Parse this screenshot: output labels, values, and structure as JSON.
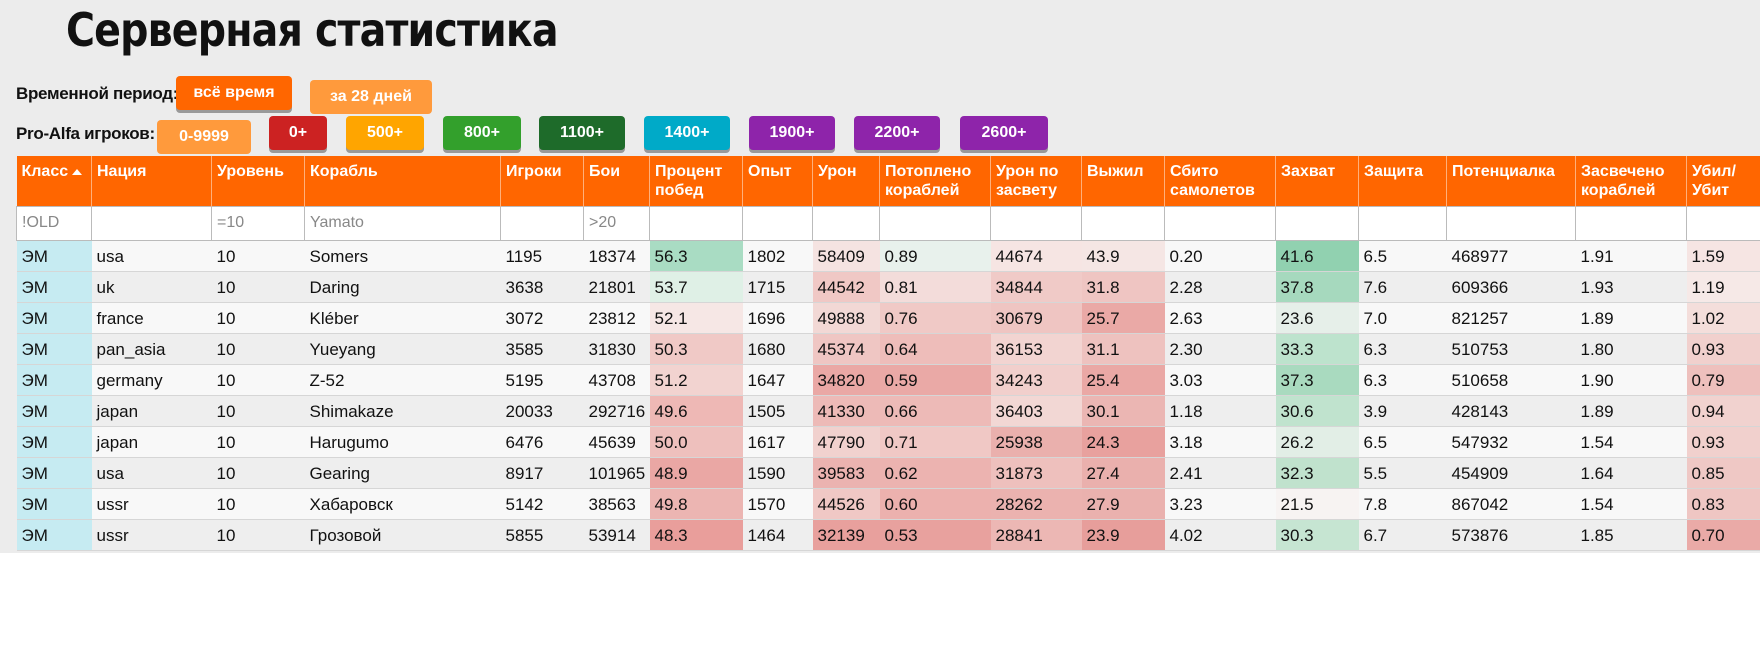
{
  "title": "Серверная статистика",
  "period": {
    "label": "Временной период:",
    "buttons": [
      {
        "label": "всё время",
        "color": "#ff6600",
        "active": true
      },
      {
        "label": "за 28 дней",
        "color": "#ff9a3c",
        "active": false
      }
    ]
  },
  "pro_alfa": {
    "label": "Pro-Alfa игроков:",
    "buttons": [
      {
        "label": "0-9999",
        "color": "#ff9a3c",
        "active": true
      },
      {
        "label": "0+",
        "color": "#cc2222"
      },
      {
        "label": "500+",
        "color": "#ffa500"
      },
      {
        "label": "800+",
        "color": "#33a02c"
      },
      {
        "label": "1100+",
        "color": "#1e6b2a"
      },
      {
        "label": "1400+",
        "color": "#00aac8"
      },
      {
        "label": "1900+",
        "color": "#8e24aa"
      },
      {
        "label": "2200+",
        "color": "#8e24aa"
      },
      {
        "label": "2600+",
        "color": "#8e24aa"
      }
    ]
  },
  "columns": [
    "Класс",
    "Нация",
    "Уровень",
    "Корабль",
    "Игроки",
    "Бои",
    "Процент побед",
    "Опыт",
    "Урон",
    "Потоплено кораблей",
    "Урон по засвету",
    "Выжил",
    "Сбито самолетов",
    "Захват",
    "Защита",
    "Потенциалка",
    "Засвечено кораблей",
    "Убил/ Убит"
  ],
  "sort_column": "Класс",
  "filters": [
    "!OLD",
    "",
    "=10",
    "Yamato",
    "",
    ">20",
    "",
    "",
    "",
    "",
    "",
    "",
    "",
    "",
    "",
    "",
    "",
    ""
  ],
  "rows": [
    [
      "ЭМ",
      "usa",
      "10",
      "Somers",
      "1195",
      "18374",
      "56.3",
      "1802",
      "58409",
      "0.89",
      "44674",
      "43.9",
      "0.20",
      "41.6",
      "6.5",
      "468977",
      "1.91",
      "1.59"
    ],
    [
      "ЭМ",
      "uk",
      "10",
      "Daring",
      "3638",
      "21801",
      "53.7",
      "1715",
      "44542",
      "0.81",
      "34844",
      "31.8",
      "2.28",
      "37.8",
      "7.6",
      "609366",
      "1.93",
      "1.19"
    ],
    [
      "ЭМ",
      "france",
      "10",
      "Kléber",
      "3072",
      "23812",
      "52.1",
      "1696",
      "49888",
      "0.76",
      "30679",
      "25.7",
      "2.63",
      "23.6",
      "7.0",
      "821257",
      "1.89",
      "1.02"
    ],
    [
      "ЭМ",
      "pan_asia",
      "10",
      "Yueyang",
      "3585",
      "31830",
      "50.3",
      "1680",
      "45374",
      "0.64",
      "36153",
      "31.1",
      "2.30",
      "33.3",
      "6.3",
      "510753",
      "1.80",
      "0.93"
    ],
    [
      "ЭМ",
      "germany",
      "10",
      "Z-52",
      "5195",
      "43708",
      "51.2",
      "1647",
      "34820",
      "0.59",
      "34243",
      "25.4",
      "3.03",
      "37.3",
      "6.3",
      "510658",
      "1.90",
      "0.79"
    ],
    [
      "ЭМ",
      "japan",
      "10",
      "Shimakaze",
      "20033",
      "292716",
      "49.6",
      "1505",
      "41330",
      "0.66",
      "36403",
      "30.1",
      "1.18",
      "30.6",
      "3.9",
      "428143",
      "1.89",
      "0.94"
    ],
    [
      "ЭМ",
      "japan",
      "10",
      "Harugumo",
      "6476",
      "45639",
      "50.0",
      "1617",
      "47790",
      "0.71",
      "25938",
      "24.3",
      "3.18",
      "26.2",
      "6.5",
      "547932",
      "1.54",
      "0.93"
    ],
    [
      "ЭМ",
      "usa",
      "10",
      "Gearing",
      "8917",
      "101965",
      "48.9",
      "1590",
      "39583",
      "0.62",
      "31873",
      "27.4",
      "2.41",
      "32.3",
      "5.5",
      "454909",
      "1.64",
      "0.85"
    ],
    [
      "ЭМ",
      "ussr",
      "10",
      "Хабаровск",
      "5142",
      "38563",
      "49.8",
      "1570",
      "44526",
      "0.60",
      "28262",
      "27.9",
      "3.23",
      "21.5",
      "7.8",
      "867042",
      "1.54",
      "0.83"
    ],
    [
      "ЭМ",
      "ussr",
      "10",
      "Грозовой",
      "5855",
      "53914",
      "48.3",
      "1464",
      "32139",
      "0.53",
      "28841",
      "23.9",
      "4.02",
      "30.3",
      "6.7",
      "573876",
      "1.85",
      "0.70"
    ]
  ],
  "cell_colors": {
    "6": [
      "#a9dcc3",
      "#dff0e6",
      "#f6e7e5",
      "#f0c9c6",
      "#f2d3d0",
      "#eeb8b5",
      "#eec0bd",
      "#eaa7a4",
      "#ecb5b2",
      "#e99e9b"
    ],
    "8": [
      "#f5e3e1",
      "#f0c8c5",
      "#f2d8d5",
      "#efc6c3",
      "#eaa8a5",
      "#edbab7",
      "#f1d1ce",
      "#ebb3b0",
      "#f0c8c5",
      "#e8a09d"
    ],
    "9": [
      "#e8f1ec",
      "#f3dcda",
      "#f0c9c6",
      "#eebdba",
      "#eaa9a6",
      "#edbab7",
      "#f0c8c5",
      "#ecb3b0",
      "#ecb1ae",
      "#e8a19e"
    ],
    "10": [
      "#f6e5e3",
      "#f0cac7",
      "#efc5c2",
      "#f2d4d1",
      "#f1cfcc",
      "#f2d7d4",
      "#eab0ad",
      "#eec0bd",
      "#ebb2af",
      "#ecb7b4"
    ],
    "11": [
      "#f5e6e4",
      "#efc5c2",
      "#eaa9a6",
      "#eec2bf",
      "#eaa8a5",
      "#ebb6b3",
      "#e8a19e",
      "#eab0ad",
      "#eab1ae",
      "#e79e9b"
    ],
    "13": [
      "#91d1b0",
      "#a6d9be",
      "#e6efe9",
      "#bde3cd",
      "#a9dabf",
      "#c0e3ce",
      "#e2eee6",
      "#c0e2cd",
      "#f7f3f2",
      "#c6e5d2"
    ],
    "17": [
      "#f6e5e3",
      "#f6e9e7",
      "#f4dedb",
      "#f1d0cd",
      "#eec0bd",
      "#f1d2cf",
      "#f1d0cd",
      "#efc8c5",
      "#efc6c3",
      "#eaaaa7"
    ]
  }
}
